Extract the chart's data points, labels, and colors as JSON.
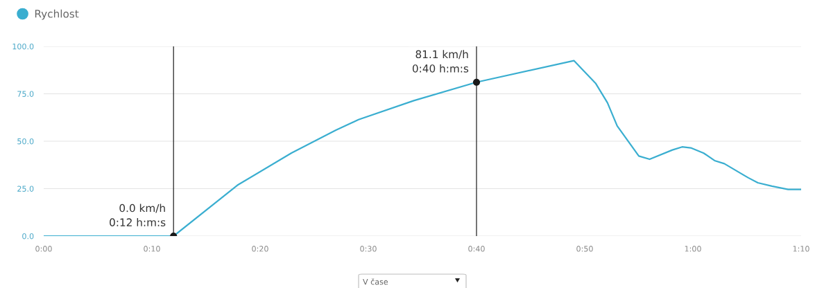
{
  "chart_data": {
    "type": "line",
    "x": [
      0,
      12,
      17.9,
      22.9,
      27,
      29.1,
      34.2,
      40,
      49,
      51,
      52.1,
      53,
      55,
      56,
      58.1,
      59,
      59.8,
      61,
      62,
      62.9,
      65.1,
      66,
      67.3,
      68.8,
      70
    ],
    "series": [
      {
        "name": "Rychlost",
        "color": "#3aaed0",
        "values": [
          0,
          0,
          26.8,
          43.8,
          55.8,
          61.4,
          71.4,
          81.1,
          92.5,
          80.6,
          70.3,
          58.1,
          42.2,
          40.5,
          45.4,
          47.0,
          46.5,
          43.7,
          39.8,
          38.2,
          30.8,
          28.1,
          26.3,
          24.6,
          24.6
        ]
      },
      {
        "type": "scatter",
        "color": "#1a1a1a",
        "x": [
          12,
          40
        ],
        "values": [
          0,
          81.1
        ]
      }
    ],
    "xlim": [
      0,
      70
    ],
    "xticks": [
      {
        "value": 0,
        "label": "0:00"
      },
      {
        "value": 10,
        "label": "0:10"
      },
      {
        "value": 20,
        "label": "0:20"
      },
      {
        "value": 30,
        "label": "0:30"
      },
      {
        "value": 40,
        "label": "0:40"
      },
      {
        "value": 50,
        "label": "0:50"
      },
      {
        "value": 60,
        "label": "1:00"
      },
      {
        "value": 70,
        "label": "1:10"
      }
    ],
    "ylim": [
      0,
      100
    ],
    "yticks": [
      {
        "value": 0,
        "label": "0.0"
      },
      {
        "value": 25,
        "label": "25.0"
      },
      {
        "value": 50,
        "label": "50.0"
      },
      {
        "value": 75,
        "label": "75.0"
      },
      {
        "value": 100,
        "label": "100.0"
      }
    ],
    "grid": "y",
    "legend": "top left",
    "ref_lines": [
      {
        "axis": "x",
        "value": 12,
        "color": "#222222"
      },
      {
        "axis": "x",
        "value": 40,
        "color": "#222222"
      }
    ],
    "annotations": [
      {
        "text": "0.0 km/h\n0:12 h:m:s",
        "x": 12,
        "y": 0
      },
      {
        "text": "81.1 km/h\n0:40 h:m:s",
        "x": 40,
        "y": 81.1
      },
      "V čase"
    ]
  }
}
